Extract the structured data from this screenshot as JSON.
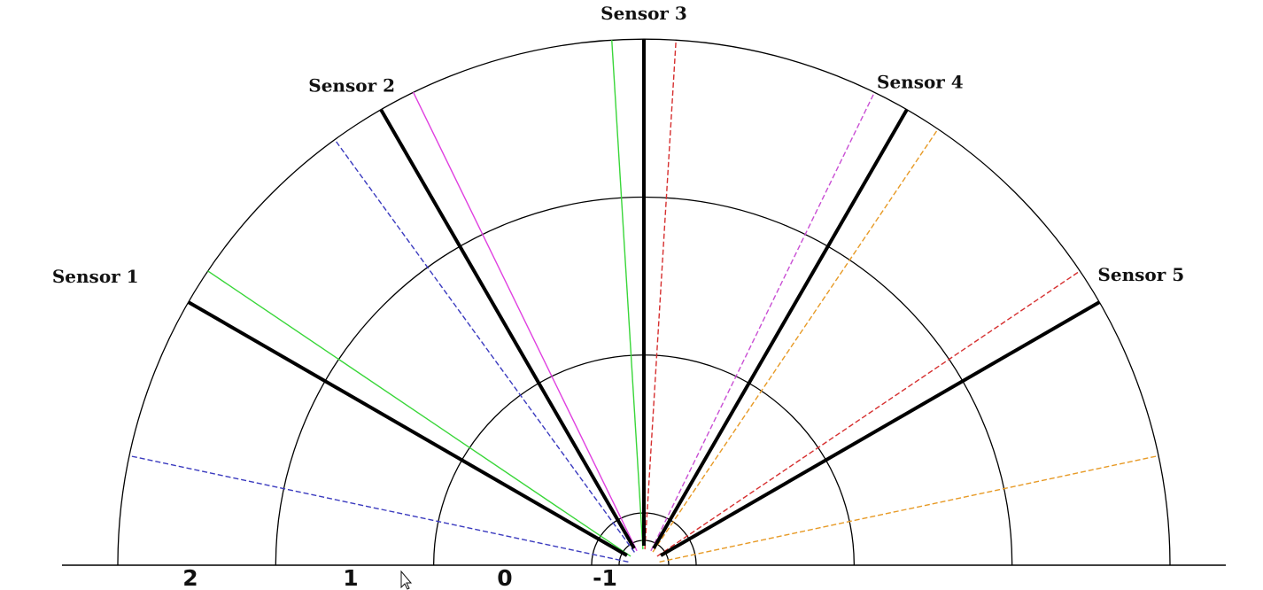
{
  "diagram": {
    "origin_value": -1,
    "max_value": 2,
    "rings": [
      2,
      1,
      0,
      -1
    ],
    "ring_tick_labels": [
      "2",
      "1",
      "0",
      "-1"
    ],
    "sensors": [
      {
        "name": "Sensor 1",
        "angle_deg": 150
      },
      {
        "name": "Sensor 2",
        "angle_deg": 120
      },
      {
        "name": "Sensor 3",
        "angle_deg": 90
      },
      {
        "name": "Sensor 4",
        "angle_deg": 60
      },
      {
        "name": "Sensor 5",
        "angle_deg": 30
      }
    ],
    "rays": [
      {
        "angle_deg": 168,
        "color": "#3b3bbf",
        "style": "dashed"
      },
      {
        "angle_deg": 146,
        "color": "#39d639",
        "style": "solid"
      },
      {
        "angle_deg": 126,
        "color": "#3b3bbf",
        "style": "dashed"
      },
      {
        "angle_deg": 116,
        "color": "#e040e0",
        "style": "solid"
      },
      {
        "angle_deg": 93.5,
        "color": "#39d639",
        "style": "solid"
      },
      {
        "angle_deg": 86.5,
        "color": "#d62f2f",
        "style": "dashed"
      },
      {
        "angle_deg": 64,
        "color": "#c94fd4",
        "style": "dashed"
      },
      {
        "angle_deg": 56,
        "color": "#e79a26",
        "style": "dashed"
      },
      {
        "angle_deg": 34,
        "color": "#d62f2f",
        "style": "dashed"
      },
      {
        "angle_deg": 12,
        "color": "#e79a26",
        "style": "dashed"
      }
    ],
    "colors": {
      "sensor_line": "#000000",
      "ring": "#000000",
      "baseline": "#000000"
    }
  }
}
